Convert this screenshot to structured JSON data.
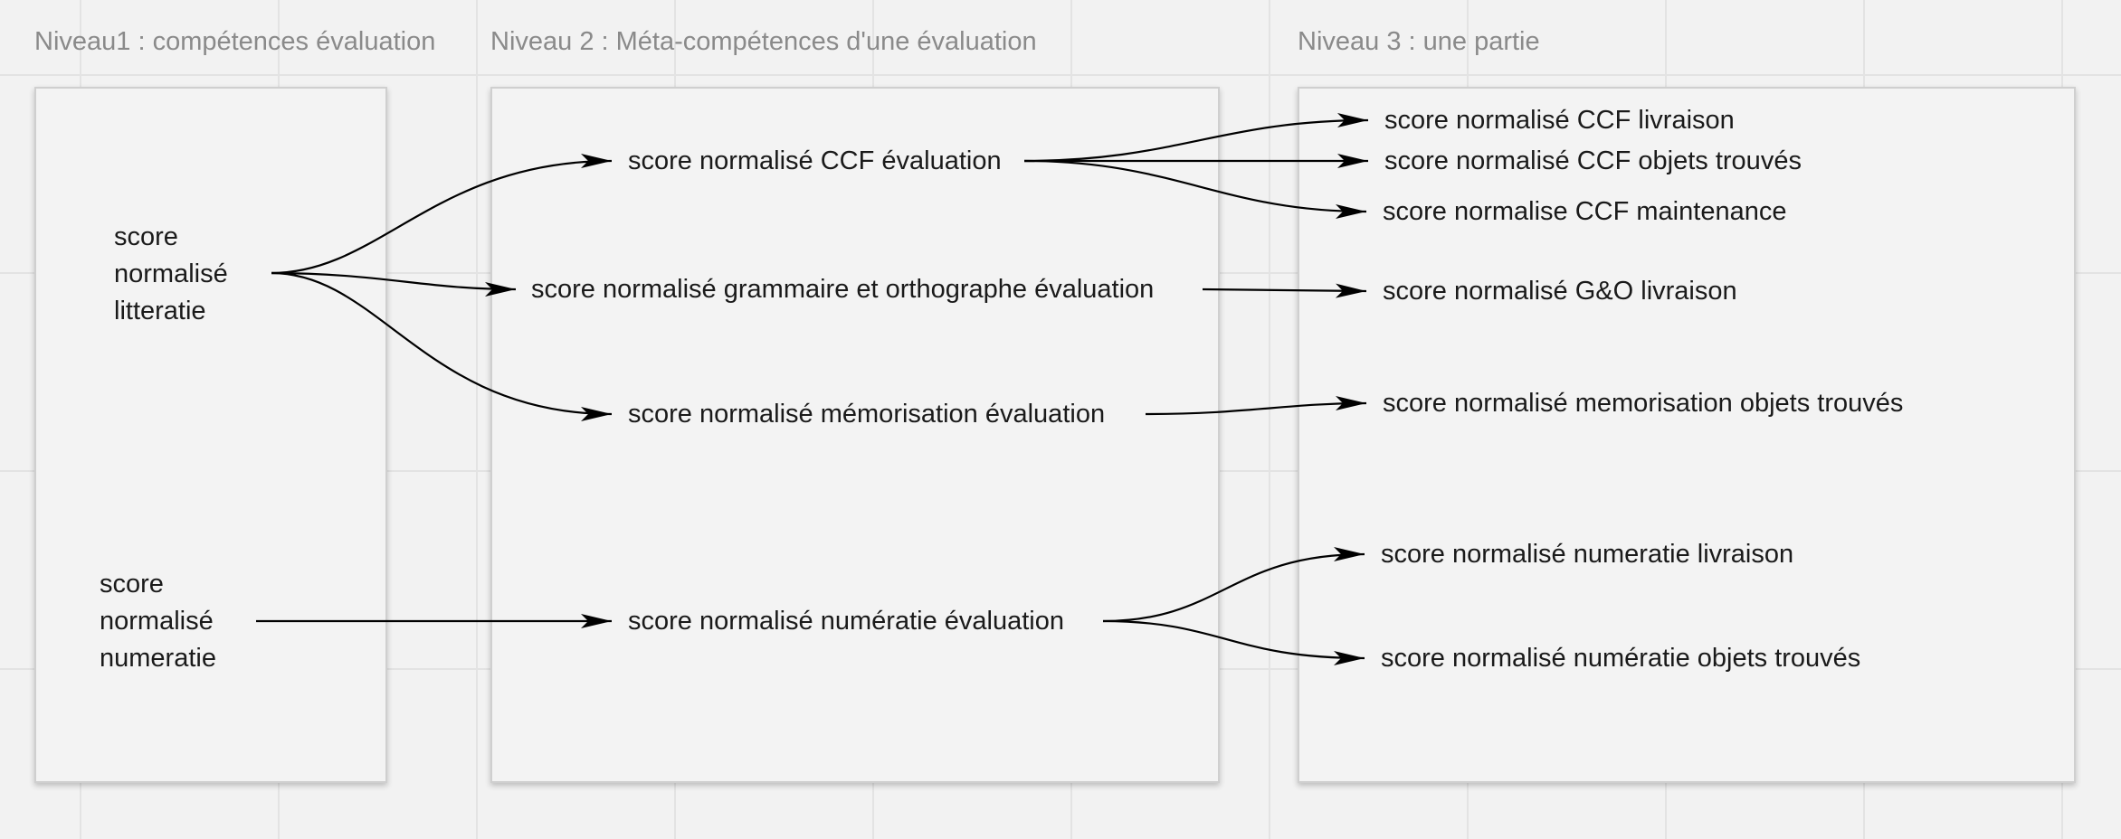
{
  "levels": {
    "level1": {
      "title": "Niveau1 : compétences évaluation"
    },
    "level2": {
      "title": "Niveau 2 : Méta-compétences d'une évaluation"
    },
    "level3": {
      "title": "Niveau 3 : une partie"
    }
  },
  "level1_nodes": {
    "litteratie": {
      "line1": "score",
      "line2": "normalisé",
      "line3": "litteratie"
    },
    "numeratie": {
      "line1": "score",
      "line2": "normalisé",
      "line3": "numeratie"
    }
  },
  "level2_nodes": {
    "ccf": "score normalisé CCF évaluation",
    "grammaire": "score normalisé grammaire et orthographe évaluation",
    "memorisation": "score normalisé mémorisation évaluation",
    "numeratie": "score normalisé numératie évaluation"
  },
  "level3_nodes": {
    "ccf_livraison": "score normalisé CCF livraison",
    "ccf_objets": "score normalisé CCF objets trouvés",
    "ccf_maintenance": "score normalise CCF maintenance",
    "go_livraison": "score normalisé G&O livraison",
    "memo_objets": "score normalisé memorisation objets trouvés",
    "num_livraison": "score normalisé numeratie livraison",
    "num_objets": "score normalisé numératie objets trouvés"
  },
  "colors": {
    "arrow": "#000000",
    "title": "#8a8a8a",
    "frame_border": "#cfcfcf"
  }
}
